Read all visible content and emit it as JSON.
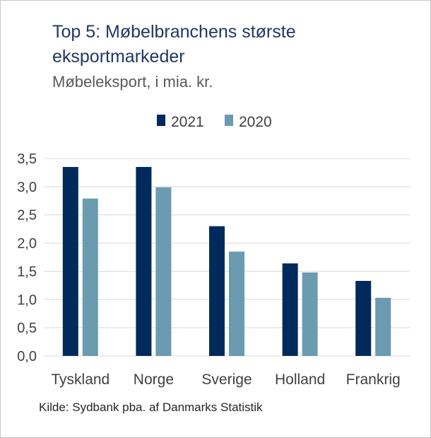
{
  "header": {
    "title": "Top 5: Møbelbranchens største eksportmarkeder",
    "subtitle": "Møbeleksport, i mia. kr."
  },
  "footer": {
    "source": "Kilde: Sydbank pba. af Danmarks Statistik"
  },
  "colors": {
    "series_2021": "#002a5c",
    "series_2020": "#6a9bb0",
    "grid": "#d9d9d9",
    "axis_text": "#404040"
  },
  "chart_data": {
    "type": "bar",
    "categories": [
      "Tyskland",
      "Norge",
      "Sverige",
      "Holland",
      "Frankrig"
    ],
    "series": [
      {
        "name": "2021",
        "values": [
          3.35,
          3.35,
          2.3,
          1.64,
          1.33
        ]
      },
      {
        "name": "2020",
        "values": [
          2.79,
          2.99,
          1.85,
          1.48,
          1.03
        ]
      }
    ],
    "y_ticks": [
      "0,0",
      "0,5",
      "1,0",
      "1,5",
      "2,0",
      "2,5",
      "3,0",
      "3,5"
    ],
    "ylim": [
      0,
      3.5
    ],
    "grid": true,
    "legend_position": "top-center"
  }
}
